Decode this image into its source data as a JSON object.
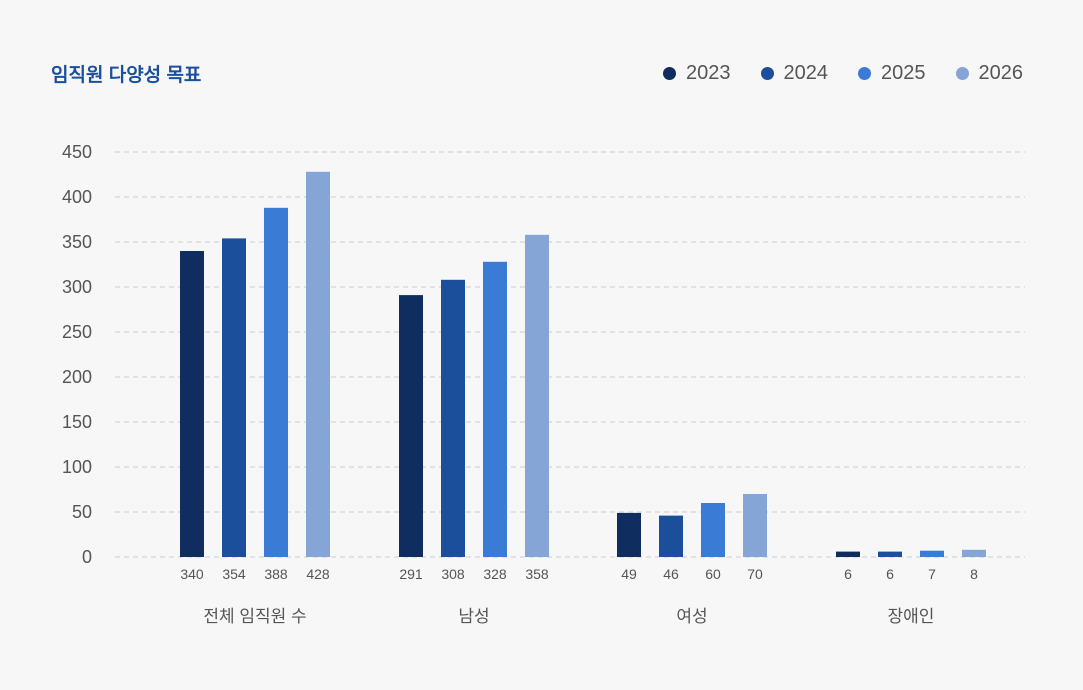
{
  "chart_data": {
    "type": "bar",
    "title": "임직원 다양성 목표",
    "categories": [
      "전체 임직원 수",
      "남성",
      "여성",
      "장애인"
    ],
    "series": [
      {
        "name": "2023",
        "color": "#0f2d5e",
        "values": [
          340,
          291,
          49,
          6
        ]
      },
      {
        "name": "2024",
        "color": "#1b4f9c",
        "values": [
          354,
          308,
          46,
          6
        ]
      },
      {
        "name": "2025",
        "color": "#3a7bd5",
        "values": [
          388,
          328,
          60,
          7
        ]
      },
      {
        "name": "2026",
        "color": "#85a5d6",
        "values": [
          428,
          358,
          70,
          8
        ]
      }
    ],
    "yticks": [
      "0",
      "50",
      "100",
      "150",
      "200",
      "250",
      "300",
      "350",
      "400",
      "450"
    ],
    "ylim": [
      0,
      450
    ],
    "xlabel": "",
    "ylabel": "",
    "grid": true,
    "legend_position": "top-right"
  }
}
